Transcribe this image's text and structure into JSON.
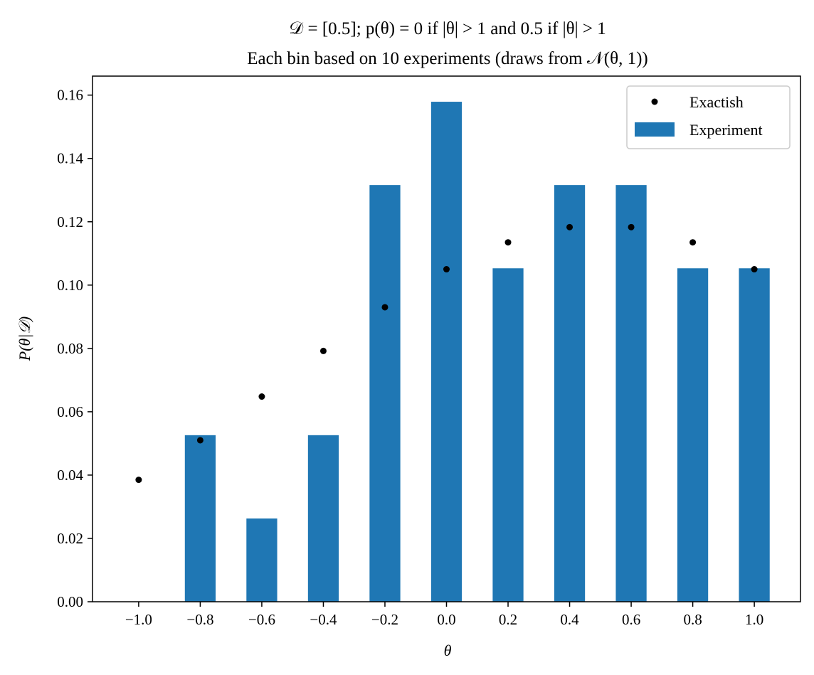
{
  "chart_data": {
    "type": "bar",
    "title": "𝒟 = [0.5]; p(θ) = 0 if |θ| > 1 and 0.5 if |θ| > 1",
    "subtitle": "Each bin based on 10 experiments (draws from 𝒩(θ, 1))",
    "xlabel": "θ",
    "ylabel": "P(θ|𝒟)",
    "xlim": [
      -1.15,
      1.15
    ],
    "ylim": [
      0.0,
      0.166
    ],
    "x_ticks": [
      -1.0,
      -0.8,
      -0.6,
      -0.4,
      -0.2,
      0.0,
      0.2,
      0.4,
      0.6,
      0.8,
      1.0
    ],
    "x_tick_labels": [
      "−1.0",
      "−0.8",
      "−0.6",
      "−0.4",
      "−0.2",
      "0.0",
      "0.2",
      "0.4",
      "0.6",
      "0.8",
      "1.0"
    ],
    "y_ticks": [
      0.0,
      0.02,
      0.04,
      0.06,
      0.08,
      0.1,
      0.12,
      0.14,
      0.16
    ],
    "y_tick_labels": [
      "0.00",
      "0.02",
      "0.04",
      "0.06",
      "0.08",
      "0.10",
      "0.12",
      "0.14",
      "0.16"
    ],
    "grid": false,
    "legend_position": "top-right",
    "bar_width": 0.1,
    "series": [
      {
        "name": "Exactish",
        "kind": "scatter",
        "color": "#000000",
        "x": [
          -1.0,
          -0.8,
          -0.6,
          -0.4,
          -0.2,
          0.0,
          0.2,
          0.4,
          0.6,
          0.8,
          1.0
        ],
        "values": [
          0.0385,
          0.051,
          0.0648,
          0.0792,
          0.093,
          0.105,
          0.1135,
          0.1183,
          0.1183,
          0.1135,
          0.105
        ]
      },
      {
        "name": "Experiment",
        "kind": "bar",
        "color": "#1f77b4",
        "x": [
          -1.0,
          -0.8,
          -0.6,
          -0.4,
          -0.2,
          0.0,
          0.2,
          0.4,
          0.6,
          0.8,
          1.0
        ],
        "values": [
          0.0,
          0.0526,
          0.0263,
          0.0526,
          0.1316,
          0.1579,
          0.1053,
          0.1316,
          0.1316,
          0.1053,
          0.1053
        ]
      }
    ]
  }
}
